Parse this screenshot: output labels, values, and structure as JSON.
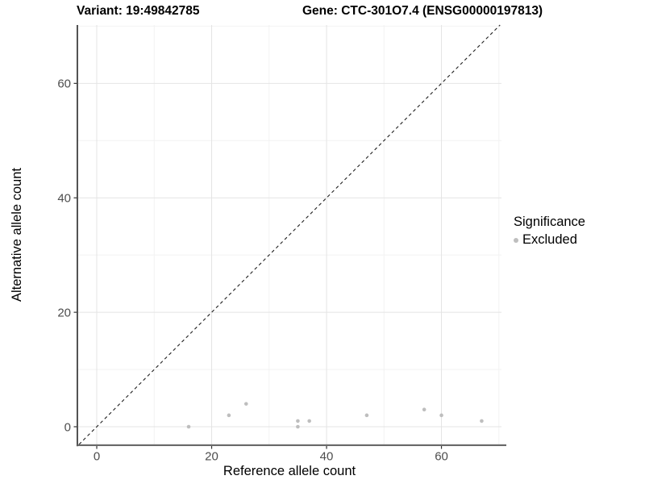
{
  "header": {
    "variant_title": "Variant: 19:49842785",
    "gene_title": "Gene: CTC-301O7.4 (ENSG00000197813)"
  },
  "chart_data": {
    "type": "scatter",
    "title": "Variant: 19:49842785 / Gene: CTC-301O7.4 (ENSG00000197813)",
    "xlabel": "Reference allele count",
    "ylabel": "Alternative allele count",
    "xlim": [
      -3.37,
      70.45
    ],
    "ylim": [
      -3.1,
      70.2
    ],
    "xticks": [
      0,
      20,
      40,
      60
    ],
    "yticks": [
      0,
      20,
      40,
      60
    ],
    "minor_xticks": [
      10,
      30,
      50,
      70
    ],
    "minor_yticks": [
      10,
      30,
      50,
      70
    ],
    "grid": "major+minor",
    "identity_line": {
      "style": "dashed",
      "slope": 1,
      "intercept": 0,
      "from": -3.1,
      "to": 70.2,
      "color": "#1f1f1f"
    },
    "series": [
      {
        "name": "Excluded",
        "color": "#bebebe",
        "points": [
          [
            16,
            0
          ],
          [
            23,
            2
          ],
          [
            26,
            4
          ],
          [
            35,
            0
          ],
          [
            35,
            1
          ],
          [
            37,
            1
          ],
          [
            47,
            2
          ],
          [
            57,
            3
          ],
          [
            60,
            2
          ],
          [
            67,
            1
          ]
        ]
      }
    ],
    "legend": {
      "title": "Significance",
      "position": "right",
      "entries": [
        {
          "label": "Excluded",
          "color": "#bebebe"
        }
      ]
    },
    "colors": {
      "major_grid": "#e4e4e4",
      "minor_grid": "#f2f2f2",
      "tick_label": "#4d4d4d",
      "tick_mark": "#333333",
      "axis_line_left": "#1a1a1a",
      "axis_line_bottom": "#6a6a6a",
      "panel_background": "#ffffff"
    }
  }
}
